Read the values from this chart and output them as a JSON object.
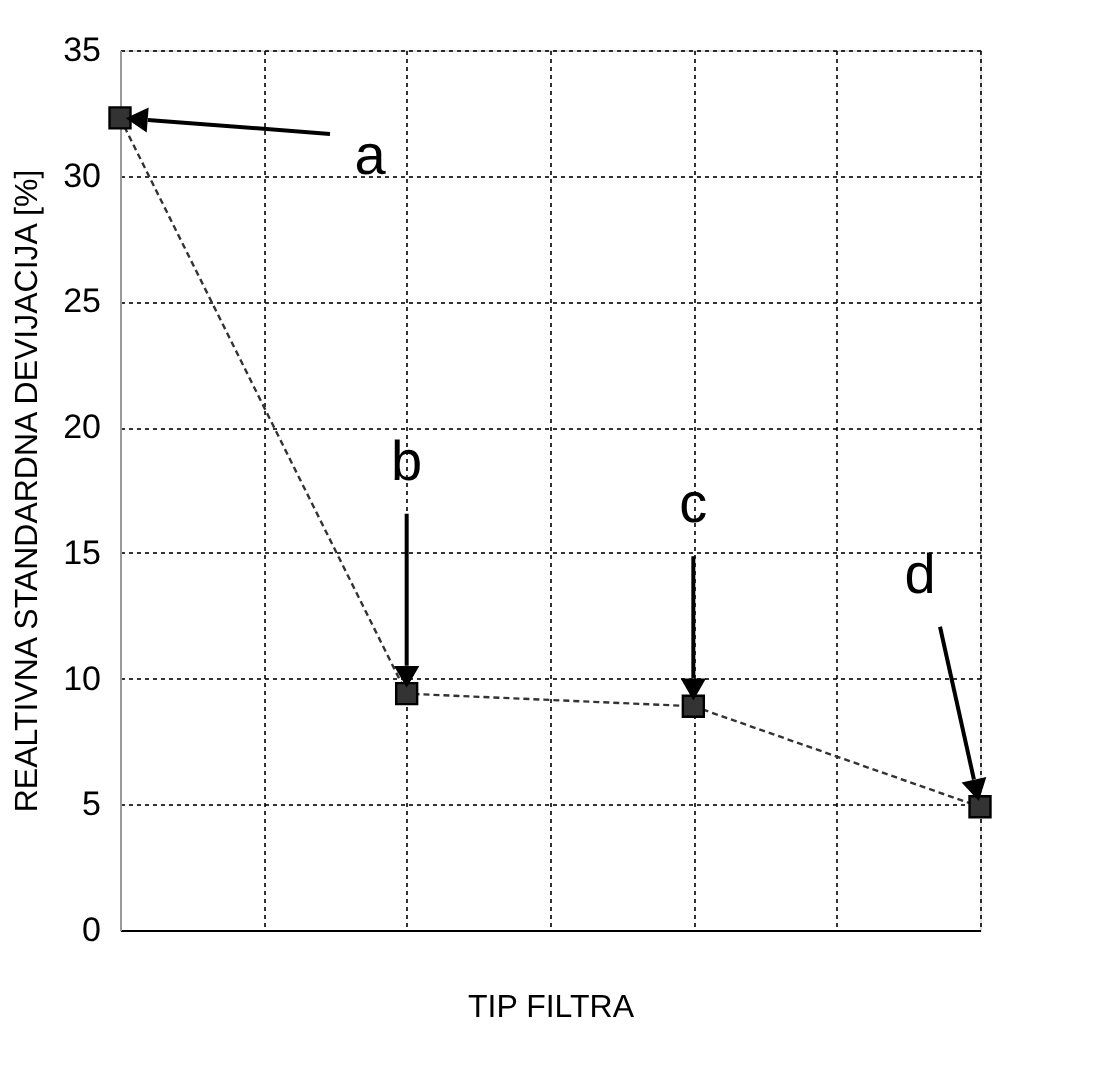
{
  "chart_data": {
    "type": "line",
    "xlabel": "TIP FILTRA",
    "ylabel": "REALTIVNA STANDARDNA DEVIJACIJA [%]",
    "categories": [
      null,
      null,
      null,
      null
    ],
    "series": [
      {
        "color": "#333333",
        "values": [
          32.3,
          9.4,
          8.9,
          4.9
        ]
      }
    ],
    "ylim": [
      0,
      35
    ],
    "yticks": [
      0,
      5,
      10,
      15,
      20,
      25,
      30,
      35
    ],
    "tick_labels": "y",
    "grid": true,
    "marker": "square",
    "line_style": "dashed",
    "annotations": [
      "a",
      "b",
      "c",
      "d"
    ]
  }
}
